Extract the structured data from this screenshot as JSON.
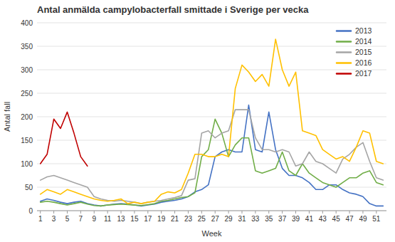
{
  "chart_data": {
    "type": "line",
    "title": "Antal anmälda campylobacterfall smittade i Sverige per vecka",
    "xlabel": "Week",
    "ylabel": "Antal fall",
    "xlim": [
      0.5,
      52.5
    ],
    "xticks": [
      1,
      3,
      5,
      7,
      9,
      11,
      13,
      15,
      17,
      19,
      21,
      23,
      25,
      27,
      29,
      31,
      33,
      35,
      37,
      39,
      41,
      43,
      45,
      47,
      49,
      51
    ],
    "ylim": [
      0,
      400
    ],
    "yticks": [
      0,
      50,
      100,
      150,
      200,
      250,
      300,
      350,
      400
    ],
    "grid": true,
    "legend": "upper right",
    "series": [
      {
        "name": "2013",
        "color": "#4472C4",
        "x": [
          1,
          2,
          3,
          4,
          5,
          6,
          7,
          8,
          9,
          10,
          11,
          12,
          13,
          14,
          15,
          16,
          17,
          18,
          19,
          20,
          21,
          22,
          23,
          24,
          25,
          26,
          27,
          28,
          29,
          30,
          31,
          32,
          33,
          34,
          35,
          36,
          37,
          38,
          39,
          40,
          41,
          42,
          43,
          44,
          45,
          46,
          47,
          48,
          49,
          50,
          51,
          52
        ],
        "values": [
          20,
          25,
          22,
          18,
          15,
          18,
          20,
          15,
          12,
          10,
          12,
          14,
          15,
          14,
          12,
          10,
          12,
          14,
          18,
          20,
          22,
          25,
          30,
          40,
          45,
          55,
          115,
          125,
          130,
          125,
          125,
          225,
          130,
          125,
          210,
          130,
          90,
          75,
          75,
          70,
          60,
          45,
          45,
          55,
          55,
          45,
          38,
          35,
          30,
          15,
          10,
          10
        ]
      },
      {
        "name": "2014",
        "color": "#70AD47",
        "x": [
          1,
          2,
          3,
          4,
          5,
          6,
          7,
          8,
          9,
          10,
          11,
          12,
          13,
          14,
          15,
          16,
          17,
          18,
          19,
          20,
          21,
          22,
          23,
          24,
          25,
          26,
          27,
          28,
          29,
          30,
          31,
          32,
          33,
          34,
          35,
          36,
          37,
          38,
          39,
          40,
          41,
          42,
          43,
          44,
          45,
          46,
          47,
          48,
          49,
          50,
          51,
          52
        ],
        "values": [
          18,
          20,
          18,
          15,
          12,
          15,
          18,
          14,
          11,
          10,
          12,
          13,
          14,
          13,
          12,
          11,
          13,
          15,
          20,
          22,
          25,
          28,
          30,
          38,
          115,
          130,
          195,
          165,
          115,
          140,
          155,
          155,
          85,
          80,
          85,
          90,
          125,
          85,
          75,
          100,
          80,
          70,
          60,
          55,
          50,
          60,
          70,
          70,
          80,
          85,
          60,
          55
        ]
      },
      {
        "name": "2015",
        "color": "#A5A5A5",
        "x": [
          1,
          2,
          3,
          4,
          5,
          6,
          7,
          8,
          9,
          10,
          11,
          12,
          13,
          14,
          15,
          16,
          17,
          18,
          19,
          20,
          21,
          22,
          23,
          24,
          25,
          26,
          27,
          28,
          29,
          30,
          31,
          32,
          33,
          34,
          35,
          36,
          37,
          38,
          39,
          40,
          41,
          42,
          43,
          44,
          45,
          46,
          47,
          48,
          49,
          50,
          51,
          52
        ],
        "values": [
          65,
          72,
          75,
          70,
          65,
          60,
          55,
          50,
          30,
          25,
          22,
          20,
          22,
          20,
          18,
          15,
          18,
          20,
          22,
          25,
          28,
          32,
          65,
          68,
          165,
          170,
          155,
          165,
          170,
          215,
          215,
          215,
          155,
          130,
          130,
          125,
          130,
          125,
          95,
          100,
          125,
          105,
          100,
          90,
          80,
          110,
          120,
          135,
          145,
          105,
          70,
          65
        ]
      },
      {
        "name": "2016",
        "color": "#FFC000",
        "x": [
          1,
          2,
          3,
          4,
          5,
          6,
          7,
          8,
          9,
          10,
          11,
          12,
          13,
          14,
          15,
          16,
          17,
          18,
          19,
          20,
          21,
          22,
          23,
          24,
          25,
          26,
          27,
          28,
          29,
          30,
          31,
          32,
          33,
          34,
          35,
          36,
          37,
          38,
          39,
          40,
          41,
          42,
          43,
          44,
          45,
          46,
          47,
          48,
          49,
          50,
          51,
          52
        ],
        "values": [
          35,
          45,
          40,
          35,
          45,
          40,
          35,
          30,
          25,
          22,
          20,
          22,
          25,
          15,
          18,
          15,
          18,
          20,
          35,
          40,
          38,
          45,
          80,
          120,
          120,
          115,
          115,
          120,
          115,
          260,
          310,
          295,
          275,
          290,
          265,
          365,
          300,
          265,
          295,
          170,
          165,
          160,
          130,
          120,
          110,
          115,
          105,
          135,
          170,
          165,
          105,
          100
        ]
      },
      {
        "name": "2017",
        "color": "#C00000",
        "x": [
          1,
          2,
          3,
          4,
          5,
          6,
          7,
          8
        ],
        "values": [
          100,
          120,
          195,
          175,
          210,
          165,
          115,
          95
        ]
      }
    ]
  }
}
